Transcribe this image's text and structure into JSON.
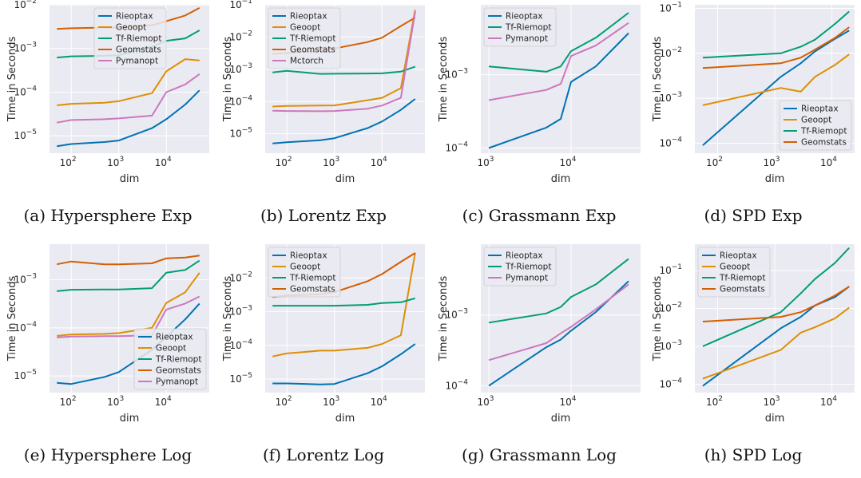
{
  "colors": {
    "Rieoptax": "#0173b2",
    "Geoopt": "#de8f05",
    "Tf-Riemopt": "#029e73",
    "Geomstats": "#d55e00",
    "Pymanopt": "#cc78bc",
    "Mctorch": "#cc78bc",
    "plot_background": "#eaeaf2",
    "grid": "#ffffff"
  },
  "chart_data": [
    {
      "id": "a",
      "type": "line",
      "caption": "(a) Hypersphere Exp",
      "xlabel": "dim",
      "ylabel": "Time in Seconds",
      "xscale": "log",
      "yscale": "log",
      "xlim": [
        35,
        80000
      ],
      "ylim": [
        4e-06,
        0.01
      ],
      "xticks": [
        {
          "v": 100,
          "label": "10",
          "exp": "2"
        },
        {
          "v": 1000,
          "label": "10",
          "exp": "3"
        },
        {
          "v": 10000,
          "label": "10",
          "exp": "4"
        }
      ],
      "yticks": [
        {
          "v": 1e-05,
          "label": "10",
          "exp": "−5"
        },
        {
          "v": 0.0001,
          "label": "10",
          "exp": "−4"
        },
        {
          "v": 0.001,
          "label": "10",
          "exp": "−3"
        },
        {
          "v": 0.01,
          "label": "10",
          "exp": "−2"
        }
      ],
      "legend": "top-center",
      "x": [
        50,
        100,
        500,
        1000,
        5000,
        10000,
        25000,
        50000
      ],
      "series": [
        {
          "name": "Rieoptax",
          "values": [
            5.8e-06,
            6.5e-06,
            7.2e-06,
            7.8e-06,
            1.5e-05,
            2.4e-05,
            5.2e-05,
            0.00011
          ]
        },
        {
          "name": "Geoopt",
          "values": [
            5e-05,
            5.4e-05,
            5.7e-05,
            6.2e-05,
            9.5e-05,
            0.0003,
            0.00057,
            0.00053
          ]
        },
        {
          "name": "Tf-Riemopt",
          "values": [
            0.00062,
            0.00066,
            0.00068,
            0.0007,
            0.0011,
            0.0015,
            0.0017,
            0.0026
          ]
        },
        {
          "name": "Geomstats",
          "values": [
            0.0028,
            0.0029,
            0.003,
            0.003,
            0.0034,
            0.0042,
            0.0057,
            0.0085
          ]
        },
        {
          "name": "Pymanopt",
          "values": [
            2e-05,
            2.3e-05,
            2.4e-05,
            2.5e-05,
            2.9e-05,
            0.0001,
            0.00015,
            0.00026
          ]
        }
      ]
    },
    {
      "id": "b",
      "type": "line",
      "caption": "(b) Lorentz Exp",
      "xlabel": "dim",
      "ylabel": "Time in Seconds",
      "xscale": "log",
      "yscale": "log",
      "xlim": [
        35,
        80000
      ],
      "ylim": [
        2.5e-06,
        0.1
      ],
      "xticks": [
        {
          "v": 100,
          "label": "10",
          "exp": "2"
        },
        {
          "v": 1000,
          "label": "10",
          "exp": "3"
        },
        {
          "v": 10000,
          "label": "10",
          "exp": "4"
        }
      ],
      "yticks": [
        {
          "v": 1e-05,
          "label": "10",
          "exp": "−5"
        },
        {
          "v": 0.0001,
          "label": "10",
          "exp": "−4"
        },
        {
          "v": 0.001,
          "label": "10",
          "exp": "−3"
        },
        {
          "v": 0.01,
          "label": "10",
          "exp": "−2"
        },
        {
          "v": 0.1,
          "label": "10",
          "exp": "−1"
        }
      ],
      "legend": "top-left",
      "x": [
        50,
        100,
        500,
        1000,
        5000,
        10000,
        25000,
        50000
      ],
      "series": [
        {
          "name": "Rieoptax",
          "values": [
            5e-06,
            5.5e-06,
            6.3e-06,
            7.3e-06,
            1.5e-05,
            2.4e-05,
            5.5e-05,
            0.00012
          ]
        },
        {
          "name": "Geoopt",
          "values": [
            7e-05,
            7.3e-05,
            7.5e-05,
            7.6e-05,
            0.00011,
            0.00013,
            0.00026,
            0.07
          ]
        },
        {
          "name": "Tf-Riemopt",
          "values": [
            0.0008,
            0.0009,
            0.00072,
            0.00073,
            0.00074,
            0.00075,
            0.00085,
            0.0012
          ]
        },
        {
          "name": "Geomstats",
          "values": [
            0.003,
            0.0032,
            0.0038,
            0.0044,
            0.007,
            0.0095,
            0.022,
            0.04
          ]
        },
        {
          "name": "Mctorch",
          "values": [
            5.2e-05,
            5.1e-05,
            5e-05,
            5.1e-05,
            6e-05,
            7.5e-05,
            0.00013,
            0.06
          ]
        }
      ]
    },
    {
      "id": "c",
      "type": "line",
      "caption": "(c) Grassmann Exp",
      "xlabel": "dim",
      "ylabel": "Time in Seconds",
      "xscale": "log",
      "yscale": "log",
      "xlim": [
        800,
        70000
      ],
      "ylim": [
        8.5e-05,
        0.009
      ],
      "xticks": [
        {
          "v": 1000,
          "label": "10",
          "exp": "3"
        },
        {
          "v": 10000,
          "label": "10",
          "exp": "4"
        }
      ],
      "yticks": [
        {
          "v": 0.0001,
          "label": "10",
          "exp": "−4"
        },
        {
          "v": 0.001,
          "label": "10",
          "exp": "−3"
        }
      ],
      "legend": "top-left",
      "x": [
        1000,
        5000,
        7500,
        10000,
        20000,
        50000
      ],
      "series": [
        {
          "name": "Rieoptax",
          "values": [
            0.0001,
            0.00019,
            0.00025,
            0.0008,
            0.0013,
            0.0037
          ]
        },
        {
          "name": "Tf-Riemopt",
          "values": [
            0.0013,
            0.0011,
            0.0013,
            0.0021,
            0.0032,
            0.007
          ]
        },
        {
          "name": "Pymanopt",
          "values": [
            0.00045,
            0.00062,
            0.00075,
            0.0018,
            0.0025,
            0.0051
          ]
        }
      ]
    },
    {
      "id": "d",
      "type": "line",
      "caption": "(d) SPD Exp",
      "xlabel": "dim",
      "ylabel": "Time in Seconds",
      "xscale": "log",
      "yscale": "log",
      "xlim": [
        40,
        25000
      ],
      "ylim": [
        6e-05,
        0.12
      ],
      "xticks": [
        {
          "v": 100,
          "label": "10",
          "exp": "2"
        },
        {
          "v": 1000,
          "label": "10",
          "exp": "3"
        },
        {
          "v": 10000,
          "label": "10",
          "exp": "4"
        }
      ],
      "yticks": [
        {
          "v": 0.0001,
          "label": "10",
          "exp": "−4"
        },
        {
          "v": 0.001,
          "label": "10",
          "exp": "−3"
        },
        {
          "v": 0.01,
          "label": "10",
          "exp": "−2"
        },
        {
          "v": 0.1,
          "label": "10",
          "exp": "−1"
        }
      ],
      "legend": "bottom-right",
      "x": [
        55,
        1275,
        2850,
        5050,
        11325,
        20100
      ],
      "series": [
        {
          "name": "Rieoptax",
          "values": [
            9e-05,
            0.003,
            0.006,
            0.011,
            0.021,
            0.032
          ]
        },
        {
          "name": "Geoopt",
          "values": [
            0.0007,
            0.0017,
            0.0014,
            0.003,
            0.0055,
            0.0095
          ]
        },
        {
          "name": "Tf-Riemopt",
          "values": [
            0.008,
            0.01,
            0.014,
            0.02,
            0.045,
            0.085
          ]
        },
        {
          "name": "Geomstats",
          "values": [
            0.0047,
            0.006,
            0.008,
            0.012,
            0.022,
            0.038
          ]
        }
      ]
    },
    {
      "id": "e",
      "type": "line",
      "caption": "(e) Hypersphere Log",
      "xlabel": "dim",
      "ylabel": "Time in Seconds",
      "xscale": "log",
      "yscale": "log",
      "xlim": [
        35,
        80000
      ],
      "ylim": [
        4.5e-06,
        0.0055
      ],
      "xticks": [
        {
          "v": 100,
          "label": "10",
          "exp": "2"
        },
        {
          "v": 1000,
          "label": "10",
          "exp": "3"
        },
        {
          "v": 10000,
          "label": "10",
          "exp": "4"
        }
      ],
      "yticks": [
        {
          "v": 1e-05,
          "label": "10",
          "exp": "−5"
        },
        {
          "v": 0.0001,
          "label": "10",
          "exp": "−4"
        },
        {
          "v": 0.001,
          "label": "10",
          "exp": "−3"
        }
      ],
      "legend": "bottom-right",
      "x": [
        50,
        100,
        500,
        1000,
        5000,
        10000,
        25000,
        50000
      ],
      "series": [
        {
          "name": "Rieoptax",
          "values": [
            7.2e-06,
            6.8e-06,
            9.5e-06,
            1.2e-05,
            3.5e-05,
            6.5e-05,
            0.00015,
            0.00032
          ]
        },
        {
          "name": "Geoopt",
          "values": [
            6.8e-05,
            7.3e-05,
            7.5e-05,
            7.8e-05,
            0.0001,
            0.00033,
            0.00055,
            0.0014
          ]
        },
        {
          "name": "Tf-Riemopt",
          "values": [
            0.00058,
            0.00062,
            0.00063,
            0.00063,
            0.00067,
            0.0014,
            0.0016,
            0.0025
          ]
        },
        {
          "name": "Geomstats",
          "values": [
            0.0021,
            0.0024,
            0.0021,
            0.0021,
            0.0022,
            0.0028,
            0.0029,
            0.0032
          ]
        },
        {
          "name": "Pymanopt",
          "values": [
            6.3e-05,
            6.6e-05,
            6.7e-05,
            6.7e-05,
            7e-05,
            0.00024,
            0.00032,
            0.00045
          ]
        }
      ]
    },
    {
      "id": "f",
      "type": "line",
      "caption": "(f) Lorentz Log",
      "xlabel": "dim",
      "ylabel": "Time in Seconds",
      "xscale": "log",
      "yscale": "log",
      "xlim": [
        35,
        80000
      ],
      "ylim": [
        4e-06,
        0.1
      ],
      "xticks": [
        {
          "v": 100,
          "label": "10",
          "exp": "2"
        },
        {
          "v": 1000,
          "label": "10",
          "exp": "3"
        },
        {
          "v": 10000,
          "label": "10",
          "exp": "4"
        }
      ],
      "yticks": [
        {
          "v": 1e-05,
          "label": "10",
          "exp": "−5"
        },
        {
          "v": 0.0001,
          "label": "10",
          "exp": "−4"
        },
        {
          "v": 0.001,
          "label": "10",
          "exp": "−3"
        },
        {
          "v": 0.01,
          "label": "10",
          "exp": "−2"
        }
      ],
      "legend": "top-left",
      "x": [
        50,
        100,
        500,
        1000,
        5000,
        10000,
        25000,
        50000
      ],
      "series": [
        {
          "name": "Rieoptax",
          "values": [
            7.5e-06,
            7.5e-06,
            7e-06,
            7.2e-06,
            1.5e-05,
            2.4e-05,
            5.5e-05,
            0.00011
          ]
        },
        {
          "name": "Geoopt",
          "values": [
            4.7e-05,
            5.8e-05,
            7e-05,
            7e-05,
            8.5e-05,
            0.00011,
            0.0002,
            0.055
          ]
        },
        {
          "name": "Tf-Riemopt",
          "values": [
            0.0015,
            0.0015,
            0.0015,
            0.0015,
            0.0016,
            0.0018,
            0.0019,
            0.0025
          ]
        },
        {
          "name": "Geomstats",
          "values": [
            0.0027,
            0.003,
            0.0033,
            0.0038,
            0.008,
            0.013,
            0.03,
            0.055
          ]
        }
      ]
    },
    {
      "id": "g",
      "type": "line",
      "caption": "(g) Grassmann Log",
      "xlabel": "dim",
      "ylabel": "Time in Seconds",
      "xscale": "log",
      "yscale": "log",
      "xlim": [
        800,
        70000
      ],
      "ylim": [
        8e-05,
        0.01
      ],
      "xticks": [
        {
          "v": 1000,
          "label": "10",
          "exp": "3"
        },
        {
          "v": 10000,
          "label": "10",
          "exp": "4"
        }
      ],
      "yticks": [
        {
          "v": 0.0001,
          "label": "10",
          "exp": "−4"
        },
        {
          "v": 0.001,
          "label": "10",
          "exp": "−3"
        }
      ],
      "legend": "top-left",
      "x": [
        1000,
        5000,
        7500,
        10000,
        20000,
        50000
      ],
      "series": [
        {
          "name": "Rieoptax",
          "values": [
            0.0001,
            0.00035,
            0.00045,
            0.0006,
            0.0011,
            0.003
          ]
        },
        {
          "name": "Tf-Riemopt",
          "values": [
            0.00078,
            0.00105,
            0.0013,
            0.0018,
            0.0027,
            0.0062
          ]
        },
        {
          "name": "Pymanopt",
          "values": [
            0.00023,
            0.0004,
            0.00055,
            0.00068,
            0.0012,
            0.0027
          ]
        }
      ]
    },
    {
      "id": "h",
      "type": "line",
      "caption": "(h) SPD Log",
      "xlabel": "dim",
      "ylabel": "Time in Seconds",
      "xscale": "log",
      "yscale": "log",
      "xlim": [
        40,
        25000
      ],
      "ylim": [
        6e-05,
        0.5
      ],
      "xticks": [
        {
          "v": 100,
          "label": "10",
          "exp": "2"
        },
        {
          "v": 1000,
          "label": "10",
          "exp": "3"
        },
        {
          "v": 10000,
          "label": "10",
          "exp": "4"
        }
      ],
      "yticks": [
        {
          "v": 0.0001,
          "label": "10",
          "exp": "−4"
        },
        {
          "v": 0.001,
          "label": "10",
          "exp": "−3"
        },
        {
          "v": 0.01,
          "label": "10",
          "exp": "−2"
        },
        {
          "v": 0.1,
          "label": "10",
          "exp": "−1"
        }
      ],
      "legend": "top-left",
      "x": [
        55,
        1275,
        2850,
        5050,
        11325,
        20100
      ],
      "series": [
        {
          "name": "Rieoptax",
          "values": [
            9e-05,
            0.003,
            0.006,
            0.012,
            0.02,
            0.038
          ]
        },
        {
          "name": "Geoopt",
          "values": [
            0.00014,
            0.0008,
            0.0023,
            0.0032,
            0.0055,
            0.0105
          ]
        },
        {
          "name": "Tf-Riemopt",
          "values": [
            0.001,
            0.008,
            0.025,
            0.06,
            0.16,
            0.4
          ]
        },
        {
          "name": "Geomstats",
          "values": [
            0.0045,
            0.006,
            0.008,
            0.012,
            0.022,
            0.038
          ]
        }
      ]
    }
  ]
}
